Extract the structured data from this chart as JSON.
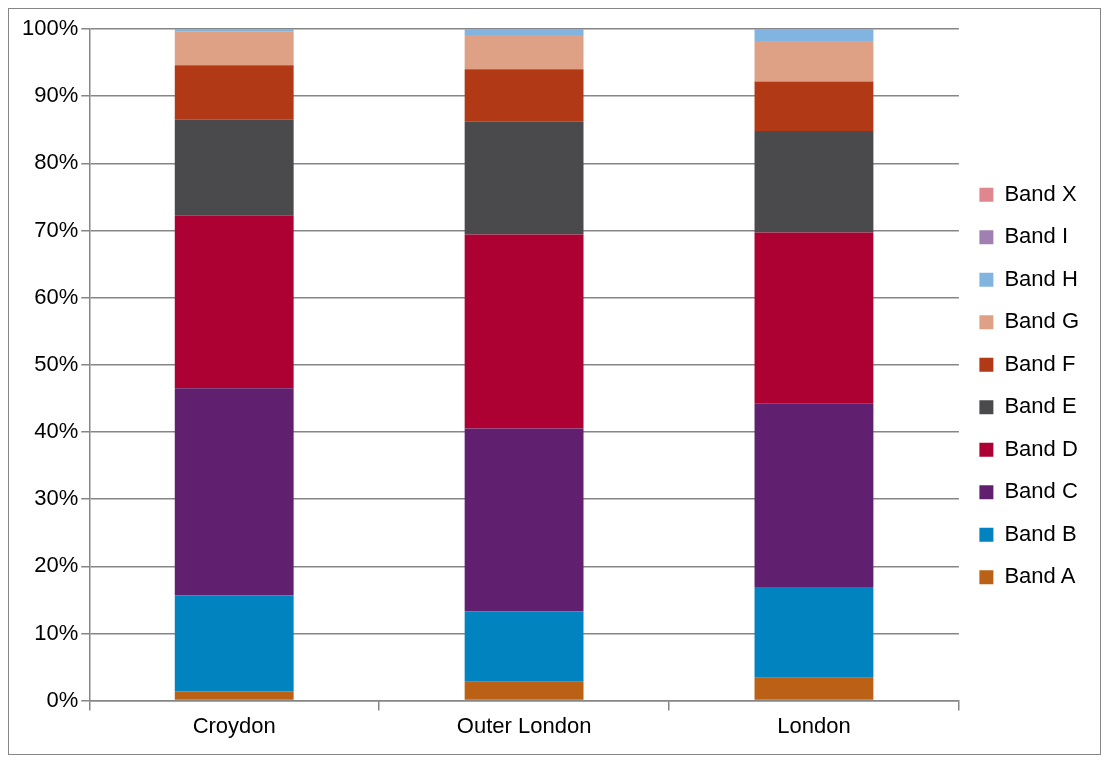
{
  "chart_data": {
    "type": "bar",
    "stacked": true,
    "categories": [
      "Croydon",
      "Outer London",
      "London"
    ],
    "series": [
      {
        "name": "Band A",
        "color": "#bb6115",
        "values": [
          1.4,
          2.8,
          3.4
        ]
      },
      {
        "name": "Band B",
        "color": "#0083bf",
        "values": [
          14.3,
          10.5,
          13.5
        ]
      },
      {
        "name": "Band C",
        "color": "#61206f",
        "values": [
          30.8,
          27.2,
          27.3
        ]
      },
      {
        "name": "Band D",
        "color": "#ad0033",
        "values": [
          25.7,
          28.9,
          25.5
        ]
      },
      {
        "name": "Band E",
        "color": "#4a4a4c",
        "values": [
          14.3,
          16.8,
          15.1
        ]
      },
      {
        "name": "Band F",
        "color": "#b13916",
        "values": [
          8.1,
          7.8,
          7.4
        ]
      },
      {
        "name": "Band G",
        "color": "#dea185",
        "values": [
          5.0,
          5.1,
          6.0
        ]
      },
      {
        "name": "Band H",
        "color": "#82b4e0",
        "values": [
          0.4,
          0.9,
          1.8
        ]
      },
      {
        "name": "Band I",
        "color": "#a080b0",
        "values": [
          0,
          0,
          0
        ]
      },
      {
        "name": "Band X",
        "color": "#e0868e",
        "values": [
          0,
          0,
          0
        ]
      }
    ],
    "ylim": [
      0,
      100
    ],
    "yticks": [
      {
        "value": 0,
        "label": "0%"
      },
      {
        "value": 10,
        "label": "10%"
      },
      {
        "value": 20,
        "label": "20%"
      },
      {
        "value": 30,
        "label": "30%"
      },
      {
        "value": 40,
        "label": "40%"
      },
      {
        "value": 50,
        "label": "50%"
      },
      {
        "value": 60,
        "label": "60%"
      },
      {
        "value": 70,
        "label": "70%"
      },
      {
        "value": 80,
        "label": "80%"
      },
      {
        "value": 90,
        "label": "90%"
      },
      {
        "value": 100,
        "label": "100%"
      }
    ],
    "grid": "y",
    "legend": "right"
  }
}
